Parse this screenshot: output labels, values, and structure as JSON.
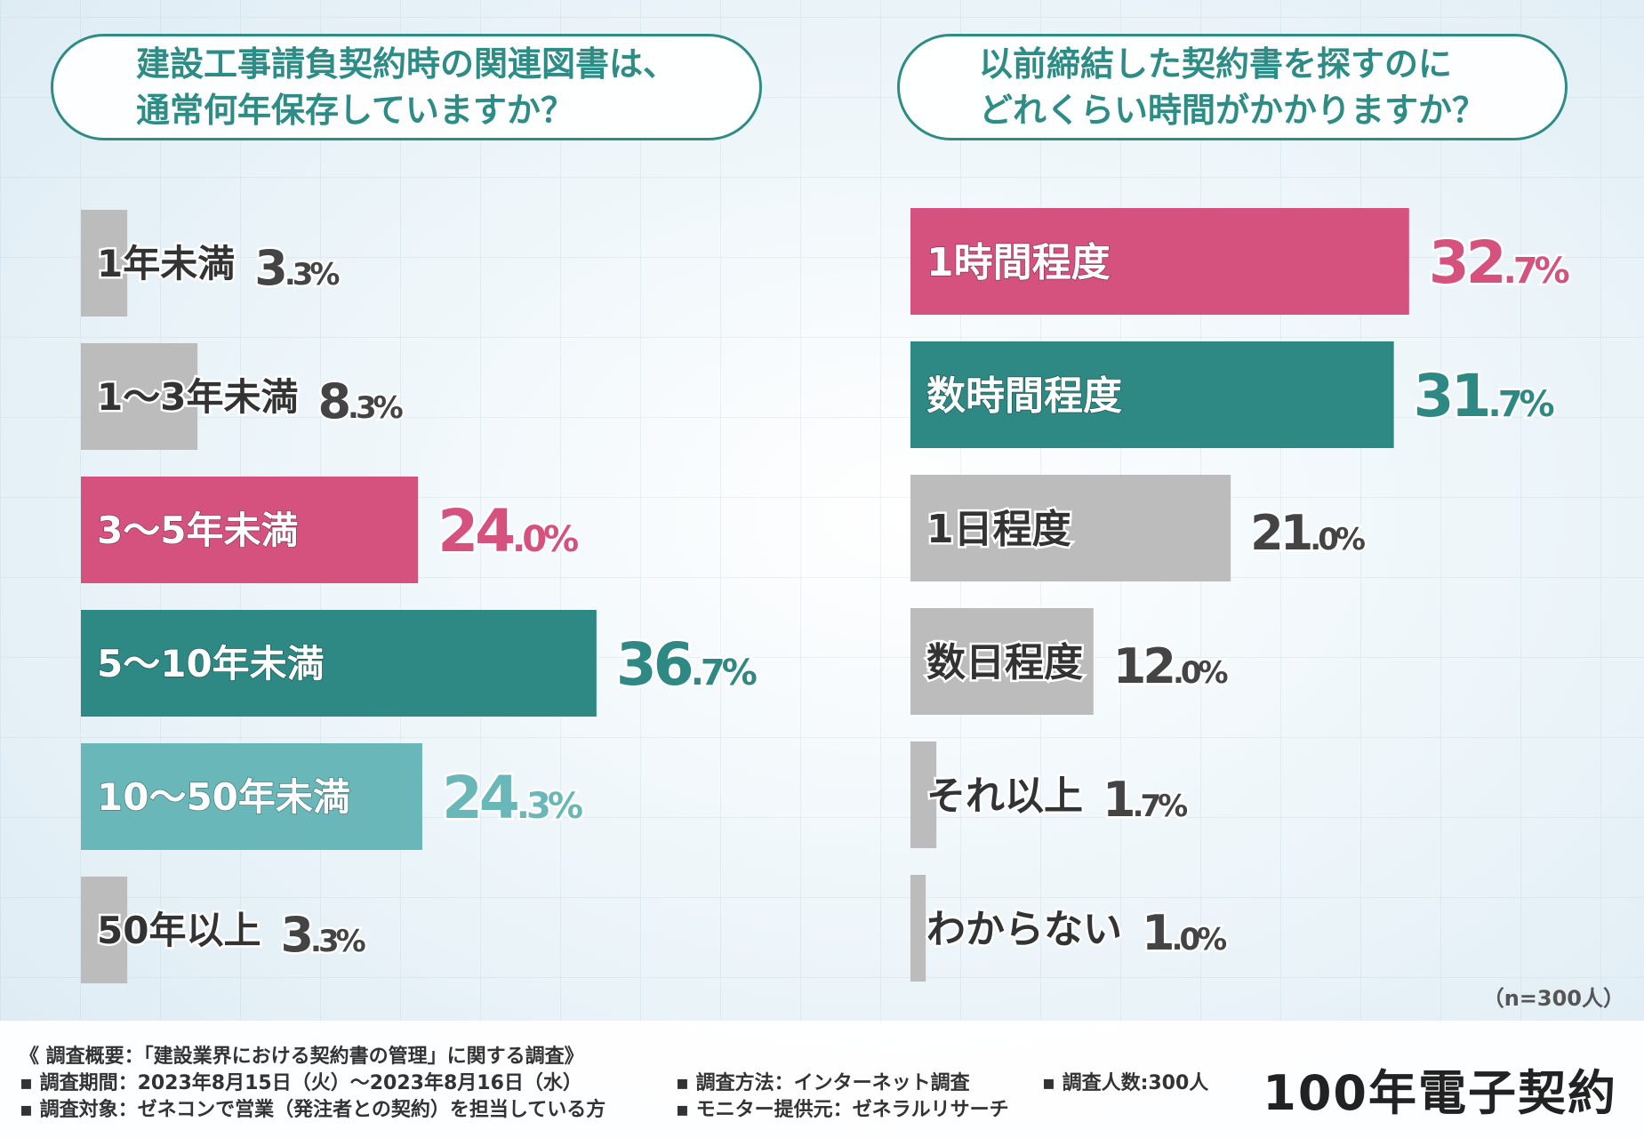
{
  "questions": {
    "left": [
      "建設工事請負契約時の関連図書は、",
      "通常何年保存していますか？"
    ],
    "right": [
      "以前締結した契約書を探すのに",
      "どれくらい時間がかかりますか？"
    ]
  },
  "colors": {
    "pink": "#d5527f",
    "teal": "#2e8884",
    "lightteal": "#6ab7b9",
    "gray": "#bcbcbc",
    "text": "#333333"
  },
  "chart_data": [
    {
      "type": "bar",
      "orientation": "horizontal",
      "title": "建設工事請負契約時の関連図書は、通常何年保存していますか？",
      "categories": [
        "1年未満",
        "1〜3年未満",
        "3〜5年未満",
        "5〜10年未満",
        "10〜50年未満",
        "50年以上"
      ],
      "values": [
        3.3,
        8.3,
        24.0,
        36.7,
        24.3,
        3.3
      ],
      "value_labels": [
        [
          "3",
          ".3%"
        ],
        [
          "8",
          ".3%"
        ],
        [
          "24",
          ".0%"
        ],
        [
          "36",
          ".7%"
        ],
        [
          "24",
          ".3%"
        ],
        [
          "3",
          ".3%"
        ]
      ],
      "bar_colors": [
        "gray",
        "gray",
        "pink",
        "teal",
        "lightteal",
        "gray"
      ],
      "unit": "%"
    },
    {
      "type": "bar",
      "orientation": "horizontal",
      "title": "以前締結した契約書を探すのにどれくらい時間がかかりますか？",
      "categories": [
        "1時間程度",
        "数時間程度",
        "1日程度",
        "数日程度",
        "それ以上",
        "わからない"
      ],
      "values": [
        32.7,
        31.7,
        21.0,
        12.0,
        1.7,
        1.0
      ],
      "value_labels": [
        [
          "32",
          ".7%"
        ],
        [
          "31",
          ".7%"
        ],
        [
          "21",
          ".0%"
        ],
        [
          "12",
          ".0%"
        ],
        [
          "1",
          ".7%"
        ],
        [
          "1",
          ".0%"
        ]
      ],
      "bar_colors": [
        "pink",
        "teal",
        "gray",
        "gray",
        "gray",
        "gray"
      ],
      "unit": "%"
    }
  ],
  "sample_note": "（n=300人）",
  "footer": {
    "overview": "《 調査概要：「建設業界における契約書の管理」に関する調査》",
    "period": "▪ 調査期間：2023年8月15日（火）〜2023年8月16日（水）",
    "target": "▪ 調査対象：ゼネコンで営業（発注者との契約）を担当している方",
    "method": "▪ 調査方法：インターネット調査",
    "provider": "▪ モニター提供元：ゼネラルリサーチ",
    "count": "▪ 調査人数:300人"
  },
  "logo": "100年電子契約"
}
